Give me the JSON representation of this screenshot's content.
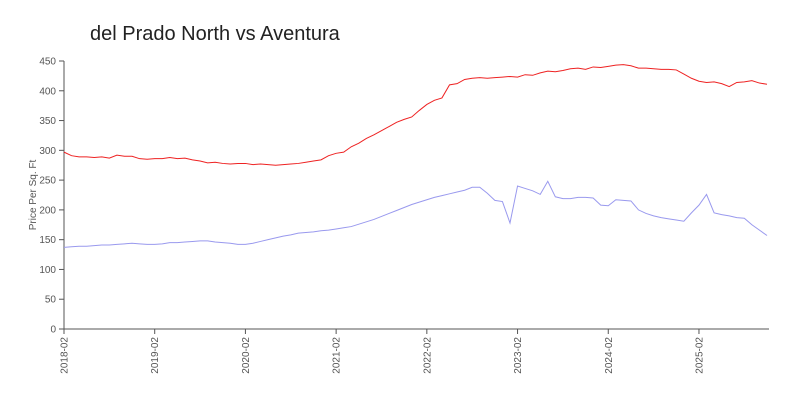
{
  "chart_data": {
    "type": "line",
    "title": "del Prado North vs Aventura",
    "y_label": "Price Per Sq. Ft",
    "x": [
      "2018-02",
      "2018-03",
      "2018-04",
      "2018-05",
      "2018-06",
      "2018-07",
      "2018-08",
      "2018-09",
      "2018-10",
      "2018-11",
      "2018-12",
      "2019-01",
      "2019-02",
      "2019-03",
      "2019-04",
      "2019-05",
      "2019-06",
      "2019-07",
      "2019-08",
      "2019-09",
      "2019-10",
      "2019-11",
      "2019-12",
      "2020-01",
      "2020-02",
      "2020-03",
      "2020-04",
      "2020-05",
      "2020-06",
      "2020-07",
      "2020-08",
      "2020-09",
      "2020-10",
      "2020-11",
      "2020-12",
      "2021-01",
      "2021-02",
      "2021-03",
      "2021-04",
      "2021-05",
      "2021-06",
      "2021-07",
      "2021-08",
      "2021-09",
      "2021-10",
      "2021-11",
      "2021-12",
      "2022-01",
      "2022-02",
      "2022-03",
      "2022-04",
      "2022-05",
      "2022-06",
      "2022-07",
      "2022-08",
      "2022-09",
      "2022-10",
      "2022-11",
      "2022-12",
      "2023-01",
      "2023-02",
      "2023-03",
      "2023-04",
      "2023-05",
      "2023-06",
      "2023-07",
      "2023-08",
      "2023-09",
      "2023-10",
      "2023-11",
      "2023-12",
      "2024-01",
      "2024-02",
      "2024-03",
      "2024-04",
      "2024-05",
      "2024-06",
      "2024-07",
      "2024-08",
      "2024-09",
      "2024-10",
      "2024-11",
      "2024-12",
      "2025-01",
      "2025-02",
      "2025-03",
      "2025-04",
      "2025-05",
      "2025-06",
      "2025-07",
      "2025-08",
      "2025-09",
      "2025-10",
      "2025-11"
    ],
    "series": [
      {
        "color": "#ee2222",
        "values": [
          297,
          291,
          289,
          289,
          288,
          289,
          287,
          292,
          290,
          290,
          286,
          285,
          286,
          286,
          288,
          286,
          287,
          284,
          282,
          279,
          280,
          278,
          277,
          278,
          278,
          276,
          277,
          276,
          275,
          276,
          277,
          278,
          280,
          282,
          284,
          291,
          295,
          297,
          306,
          312,
          320,
          326,
          333,
          340,
          347,
          352,
          356,
          367,
          377,
          384,
          388,
          410,
          412,
          419,
          421,
          422,
          421,
          422,
          423,
          424,
          423,
          427,
          426,
          430,
          433,
          432,
          434,
          437,
          438,
          436,
          440,
          439,
          441,
          443,
          444,
          442,
          438,
          438,
          437,
          436,
          436,
          435,
          428,
          421,
          416,
          414,
          415,
          412,
          407,
          414,
          415,
          417,
          413,
          411
        ]
      },
      {
        "color": "#9999ee",
        "values": [
          137,
          138,
          139,
          139,
          140,
          141,
          141,
          142,
          143,
          144,
          143,
          142,
          142,
          143,
          145,
          145,
          146,
          147,
          148,
          148,
          146,
          145,
          144,
          142,
          142,
          144,
          147,
          150,
          153,
          156,
          158,
          161,
          162,
          163,
          165,
          166,
          168,
          170,
          172,
          176,
          180,
          184,
          189,
          194,
          199,
          204,
          209,
          213,
          217,
          221,
          224,
          227,
          230,
          233,
          238,
          238,
          228,
          216,
          214,
          178,
          240,
          236,
          232,
          226,
          248,
          222,
          219,
          219,
          221,
          221,
          220,
          208,
          207,
          217,
          216,
          215,
          200,
          194,
          190,
          187,
          185,
          183,
          181,
          195,
          208,
          226,
          195,
          192,
          190,
          187,
          186,
          175,
          166,
          157
        ]
      }
    ],
    "xticks": [
      "2018-02",
      "2019-02",
      "2020-02",
      "2021-02",
      "2022-02",
      "2023-02",
      "2024-02",
      "2025-02"
    ],
    "ylim": [
      0,
      450
    ],
    "yticks": [
      0,
      50,
      100,
      150,
      200,
      250,
      300,
      350,
      400,
      450
    ]
  }
}
